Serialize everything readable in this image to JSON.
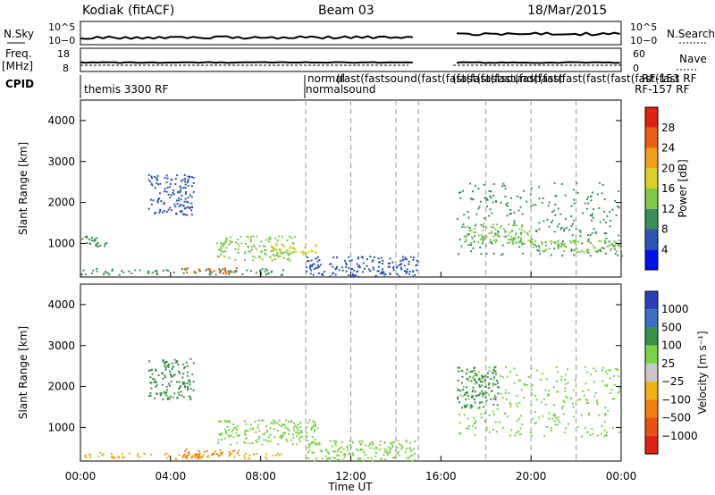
{
  "header": {
    "station": "Kodiak (fitACF)",
    "beam": "Beam 03",
    "date": "18/Mar/2015"
  },
  "nsky_panel": {
    "left_label": "N.Sky",
    "right_label": "N.Search",
    "yticks_left": [
      "10^5",
      "10−0"
    ],
    "yticks_right": [
      "10^5",
      "10−0"
    ]
  },
  "freq_panel": {
    "left_label_1": "Freq.",
    "left_label_2": "[MHz]",
    "right_label": "Nave",
    "yticks_left": [
      "18",
      "8"
    ],
    "yticks_right": [
      "60",
      "0"
    ]
  },
  "cpid": {
    "label": "CPID",
    "main": "themis 3300 RF",
    "row2": "normal",
    "row3": "normalsound",
    "overlap_text": "(fast(fastsound(fast(fast(fast(fast(fast(fast",
    "right_text": "RF-153 RF",
    "right_text2": "RF-157 RF"
  },
  "xaxis": {
    "title": "Time UT",
    "ticks": [
      "00:00",
      "04:00",
      "08:00",
      "12:00",
      "16:00",
      "20:00",
      "00:00"
    ],
    "hours": [
      0,
      4,
      8,
      12,
      16,
      20,
      24
    ],
    "range_hours": [
      0,
      24
    ]
  },
  "colors": {
    "power": [
      "#0010e8",
      "#2d55b8",
      "#3a8f5a",
      "#7ec84a",
      "#d7d025",
      "#f0a018",
      "#e86010",
      "#e02010"
    ],
    "velocity": [
      "#2a3fb8",
      "#3c6cc4",
      "#3a8f4a",
      "#7ad244",
      "#c8c8c8",
      "#f0b010",
      "#f08010",
      "#e85010",
      "#e02010"
    ]
  },
  "chart_data": [
    {
      "type": "heatmap",
      "title": "Power",
      "ylabel": "Slant Range [km]",
      "xlabel": "Time UT",
      "ylim": [
        180,
        4500
      ],
      "yticks": [
        1000,
        2000,
        3000,
        4000
      ],
      "colorbar": {
        "label": "Power [dB]",
        "ticks": [
          4,
          8,
          12,
          16,
          20,
          24,
          28
        ],
        "range": [
          0,
          32
        ]
      },
      "echo_regions": [
        {
          "t0": 0.0,
          "t1": 9.0,
          "r0": 250,
          "r1": 400,
          "value": 8
        },
        {
          "t0": 4.5,
          "t1": 7.0,
          "r0": 280,
          "r1": 420,
          "value": 26
        },
        {
          "t0": 3.0,
          "t1": 5.0,
          "r0": 1700,
          "r1": 2700,
          "value": 6
        },
        {
          "t0": 0.0,
          "t1": 1.2,
          "r0": 900,
          "r1": 1200,
          "value": 10
        },
        {
          "t0": 6.0,
          "t1": 9.5,
          "r0": 600,
          "r1": 1200,
          "value": 12
        },
        {
          "t0": 8.5,
          "t1": 10.5,
          "r0": 700,
          "r1": 1000,
          "value": 18
        },
        {
          "t0": 10.0,
          "t1": 15.0,
          "r0": 200,
          "r1": 700,
          "value": 7
        },
        {
          "t0": 16.7,
          "t1": 24.0,
          "r0": 700,
          "r1": 2500,
          "value": 9
        },
        {
          "t0": 17.0,
          "t1": 20.0,
          "r0": 1000,
          "r1": 1500,
          "value": 14
        },
        {
          "t0": 20.0,
          "t1": 24.0,
          "r0": 800,
          "r1": 1100,
          "value": 12
        }
      ]
    },
    {
      "type": "heatmap",
      "title": "Velocity",
      "ylabel": "Slant Range [km]",
      "xlabel": "Time UT",
      "ylim": [
        180,
        4500
      ],
      "yticks": [
        1000,
        2000,
        3000,
        4000
      ],
      "colorbar": {
        "label": "Velocity [m s⁻¹]",
        "ticks": [
          "1000",
          "500",
          "100",
          "25",
          "−25",
          "−100",
          "−500",
          "−1000"
        ]
      },
      "echo_regions": [
        {
          "t0": 0.0,
          "t1": 9.0,
          "r0": 250,
          "r1": 400,
          "value": "-100"
        },
        {
          "t0": 4.5,
          "t1": 7.0,
          "r0": 280,
          "r1": 500,
          "value": "-500"
        },
        {
          "t0": 3.0,
          "t1": 5.0,
          "r0": 1700,
          "r1": 2700,
          "value": "100"
        },
        {
          "t0": 6.0,
          "t1": 10.5,
          "r0": 600,
          "r1": 1200,
          "value": "25"
        },
        {
          "t0": 10.0,
          "t1": 15.0,
          "r0": 200,
          "r1": 700,
          "value": "25"
        },
        {
          "t0": 16.7,
          "t1": 24.0,
          "r0": 800,
          "r1": 2500,
          "value": "25"
        },
        {
          "t0": 16.7,
          "t1": 18.5,
          "r0": 1500,
          "r1": 2500,
          "value": "100"
        }
      ]
    }
  ]
}
